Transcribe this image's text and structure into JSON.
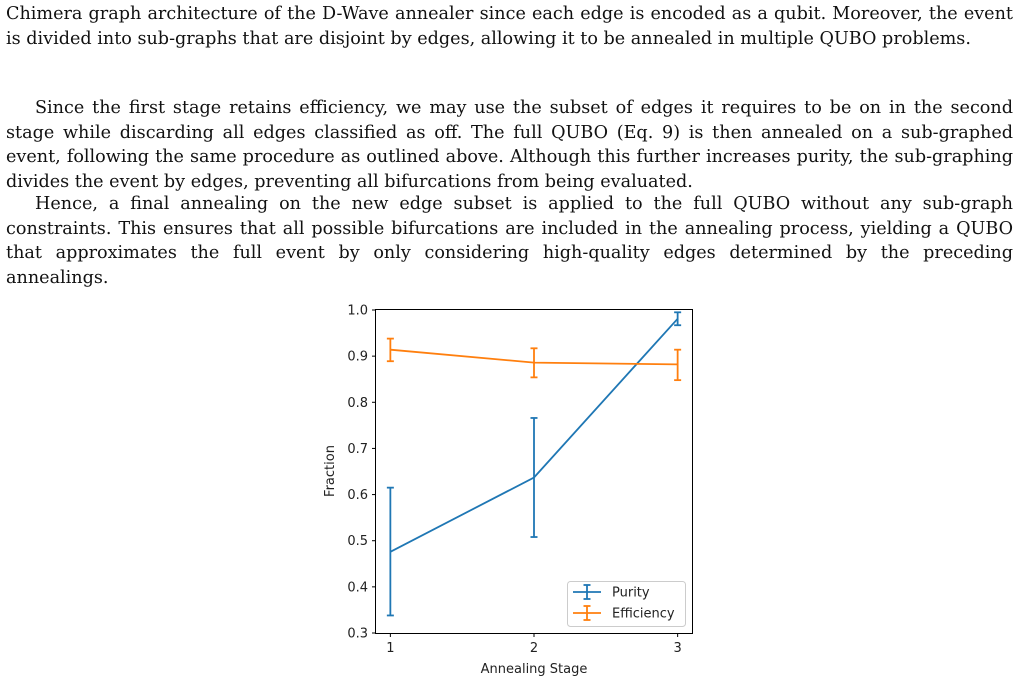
{
  "paragraphs": [
    "Chimera graph architecture of the D-Wave annealer since each edge is encoded as a qubit. Moreover, the event is divided into sub-graphs that are disjoint by edges, allowing it to be annealed in multiple QUBO problems.",
    "Since the first stage retains efficiency, we may use the subset of edges it requires to be on in the second stage while discarding all edges classified as off. The full QUBO (Eq. 9) is then annealed on a sub-graphed event, following the same procedure as outlined above. Although this further increases purity, the sub-graphing divides the event by edges, preventing all bifurcations from being evaluated.",
    "Hence, a final annealing on the new edge subset is applied to the full QUBO without any sub-graph constraints. This ensures that all possible bifurcations are included in the annealing process, yielding a QUBO that approximates the full event by only considering high-quality edges determined by the preceding annealings."
  ],
  "chart_data": {
    "type": "line",
    "x": [
      1,
      2,
      3
    ],
    "xticks": [
      "1",
      "2",
      "3"
    ],
    "yticks": [
      "0.3",
      "0.4",
      "0.5",
      "0.6",
      "0.7",
      "0.8",
      "0.9",
      "1.0"
    ],
    "xlim": [
      0.9,
      3.1
    ],
    "ylim": [
      0.3,
      1.0
    ],
    "xlabel": "Annealing Stage",
    "ylabel": "Fraction",
    "legend_position": "lower-right",
    "series": [
      {
        "name": "Purity",
        "color": "#1f77b4",
        "values": [
          0.476,
          0.637,
          0.981
        ],
        "err_low": [
          0.338,
          0.508,
          0.967
        ],
        "err_high": [
          0.615,
          0.766,
          0.995
        ]
      },
      {
        "name": "Efficiency",
        "color": "#ff7f0e",
        "values": [
          0.914,
          0.886,
          0.882
        ],
        "err_low": [
          0.889,
          0.854,
          0.848
        ],
        "err_high": [
          0.938,
          0.917,
          0.914
        ]
      }
    ]
  }
}
